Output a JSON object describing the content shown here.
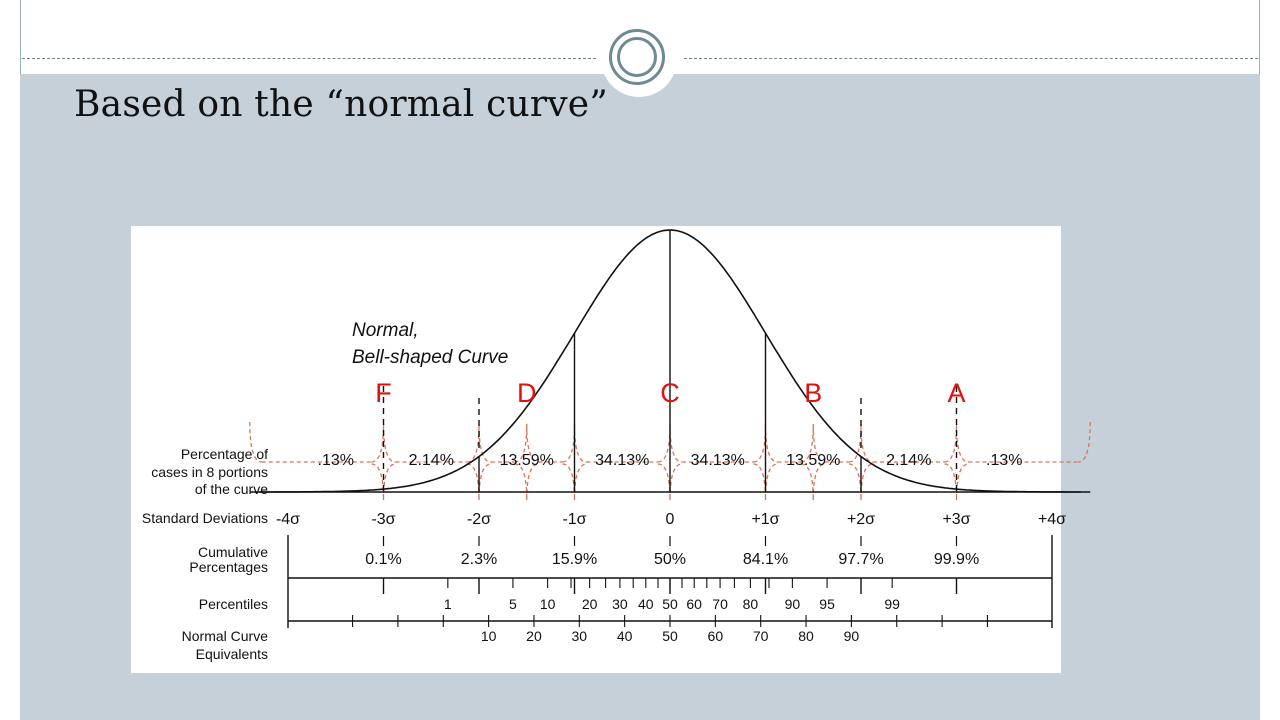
{
  "slide": {
    "title": "Based on the “normal curve”"
  },
  "chart_data": {
    "type": "normal-curve-diagram",
    "curve_label_line1": "Normal,",
    "curve_label_line2": "Bell-shaped Curve",
    "row_labels": {
      "percentage_cases": [
        "Percentage of",
        "cases in 8 portions",
        "of the curve"
      ],
      "standard_deviations": [
        "Standard Deviations"
      ],
      "cumulative": [
        "Cumulative",
        "Percentages"
      ],
      "percentiles": [
        "Percentiles"
      ],
      "nce": [
        "Normal Curve",
        "Equivalents"
      ]
    },
    "sd_ticks": [
      {
        "z": -4,
        "label": "-4σ"
      },
      {
        "z": -3,
        "label": "-3σ"
      },
      {
        "z": -2,
        "label": "-2σ"
      },
      {
        "z": -1,
        "label": "-1σ"
      },
      {
        "z": 0,
        "label": "0"
      },
      {
        "z": 1,
        "label": "+1σ"
      },
      {
        "z": 2,
        "label": "+2σ"
      },
      {
        "z": 3,
        "label": "+3σ"
      },
      {
        "z": 4,
        "label": "+4σ"
      }
    ],
    "portions": [
      {
        "from": -4,
        "to": -3,
        "label": ".13%"
      },
      {
        "from": -3,
        "to": -2,
        "label": "2.14%"
      },
      {
        "from": -2,
        "to": -1,
        "label": "13.59%"
      },
      {
        "from": -1,
        "to": 0,
        "label": "34.13%"
      },
      {
        "from": 0,
        "to": 1,
        "label": "34.13%"
      },
      {
        "from": 1,
        "to": 2,
        "label": "13.59%"
      },
      {
        "from": 2,
        "to": 3,
        "label": "2.14%"
      },
      {
        "from": 3,
        "to": 4,
        "label": ".13%"
      }
    ],
    "cumulative": [
      {
        "z": -3,
        "label": "0.1%"
      },
      {
        "z": -2,
        "label": "2.3%"
      },
      {
        "z": -1,
        "label": "15.9%"
      },
      {
        "z": 0,
        "label": "50%"
      },
      {
        "z": 1,
        "label": "84.1%"
      },
      {
        "z": 2,
        "label": "97.7%"
      },
      {
        "z": 3,
        "label": "99.9%"
      }
    ],
    "percentiles": [
      {
        "p": 1,
        "label": "1"
      },
      {
        "p": 5,
        "label": "5"
      },
      {
        "p": 10,
        "label": "10"
      },
      {
        "p": 20,
        "label": "20"
      },
      {
        "p": 30,
        "label": "30"
      },
      {
        "p": 40,
        "label": "40"
      },
      {
        "p": 50,
        "label": "50"
      },
      {
        "p": 60,
        "label": "60"
      },
      {
        "p": 70,
        "label": "70"
      },
      {
        "p": 80,
        "label": "80"
      },
      {
        "p": 90,
        "label": "90"
      },
      {
        "p": 95,
        "label": "95"
      },
      {
        "p": 99,
        "label": "99"
      }
    ],
    "percentile_unlabeled_ticks": [
      15,
      25,
      35,
      45,
      55,
      65,
      75,
      85
    ],
    "nce": [
      {
        "v": 10,
        "label": "10"
      },
      {
        "v": 20,
        "label": "20"
      },
      {
        "v": 30,
        "label": "30"
      },
      {
        "v": 40,
        "label": "40"
      },
      {
        "v": 50,
        "label": "50"
      },
      {
        "v": 60,
        "label": "60"
      },
      {
        "v": 70,
        "label": "70"
      },
      {
        "v": 80,
        "label": "80"
      },
      {
        "v": 90,
        "label": "90"
      }
    ],
    "nce_unlabeled_ticks": [
      -20,
      -10,
      0,
      100,
      110,
      120
    ],
    "grade_letters": [
      {
        "z": -3,
        "label": "F"
      },
      {
        "z": -1.5,
        "label": "D"
      },
      {
        "z": 0,
        "label": "C"
      },
      {
        "z": 1.5,
        "label": "B"
      },
      {
        "z": 3,
        "label": "A"
      }
    ],
    "grade_boundaries_z": [
      -4.4,
      -3,
      -2,
      -1.5,
      -1,
      0,
      1,
      1.5,
      2,
      3,
      4.4
    ],
    "colors": {
      "curve": "#111111",
      "grades": "#e01010",
      "bracket": "#d9735a"
    }
  }
}
